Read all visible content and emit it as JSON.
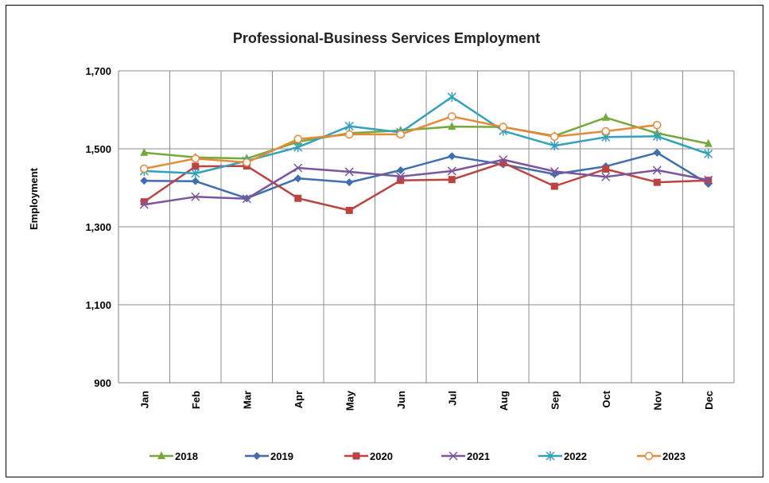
{
  "chart_data": {
    "type": "line",
    "title": "Professional-Business Services Employment",
    "xlabel": "",
    "ylabel": "Employment",
    "ylim": [
      900,
      1700
    ],
    "yticks": [
      900,
      1100,
      1300,
      1500,
      1700
    ],
    "ytick_labels": [
      "900",
      "1,100",
      "1,300",
      "1,500",
      "1,700"
    ],
    "grid": true,
    "legend_position": "bottom",
    "categories": [
      "Jan",
      "Feb",
      "Mar",
      "Apr",
      "May",
      "Jun",
      "Jul",
      "Aug",
      "Sep",
      "Oct",
      "Nov",
      "Dec"
    ],
    "series": [
      {
        "name": "2018",
        "color": "#77A83C",
        "marker": "triangle",
        "values": [
          1490,
          1478,
          1475,
          1518,
          1540,
          1547,
          1557,
          1556,
          1533,
          1580,
          1540,
          1513
        ]
      },
      {
        "name": "2019",
        "color": "#3E6FAE",
        "marker": "diamond",
        "values": [
          1418,
          1417,
          1373,
          1424,
          1414,
          1445,
          1481,
          1460,
          1435,
          1455,
          1490,
          1410
        ]
      },
      {
        "name": "2020",
        "color": "#BD4340",
        "marker": "square",
        "values": [
          1364,
          1455,
          1456,
          1373,
          1342,
          1419,
          1421,
          1464,
          1404,
          1448,
          1414,
          1419
        ]
      },
      {
        "name": "2021",
        "color": "#7B569E",
        "marker": "x",
        "values": [
          1357,
          1377,
          1372,
          1451,
          1441,
          1429,
          1443,
          1472,
          1442,
          1428,
          1445,
          1420
        ]
      },
      {
        "name": "2022",
        "color": "#31A1BE",
        "marker": "star",
        "values": [
          1443,
          1437,
          1469,
          1504,
          1558,
          1542,
          1633,
          1546,
          1508,
          1530,
          1532,
          1487
        ]
      },
      {
        "name": "2023",
        "color": "#E58A39",
        "marker": "circle",
        "values": [
          1449,
          1475,
          1465,
          1525,
          1537,
          1537,
          1583,
          1556,
          1531,
          1545,
          1561,
          null
        ]
      }
    ]
  }
}
